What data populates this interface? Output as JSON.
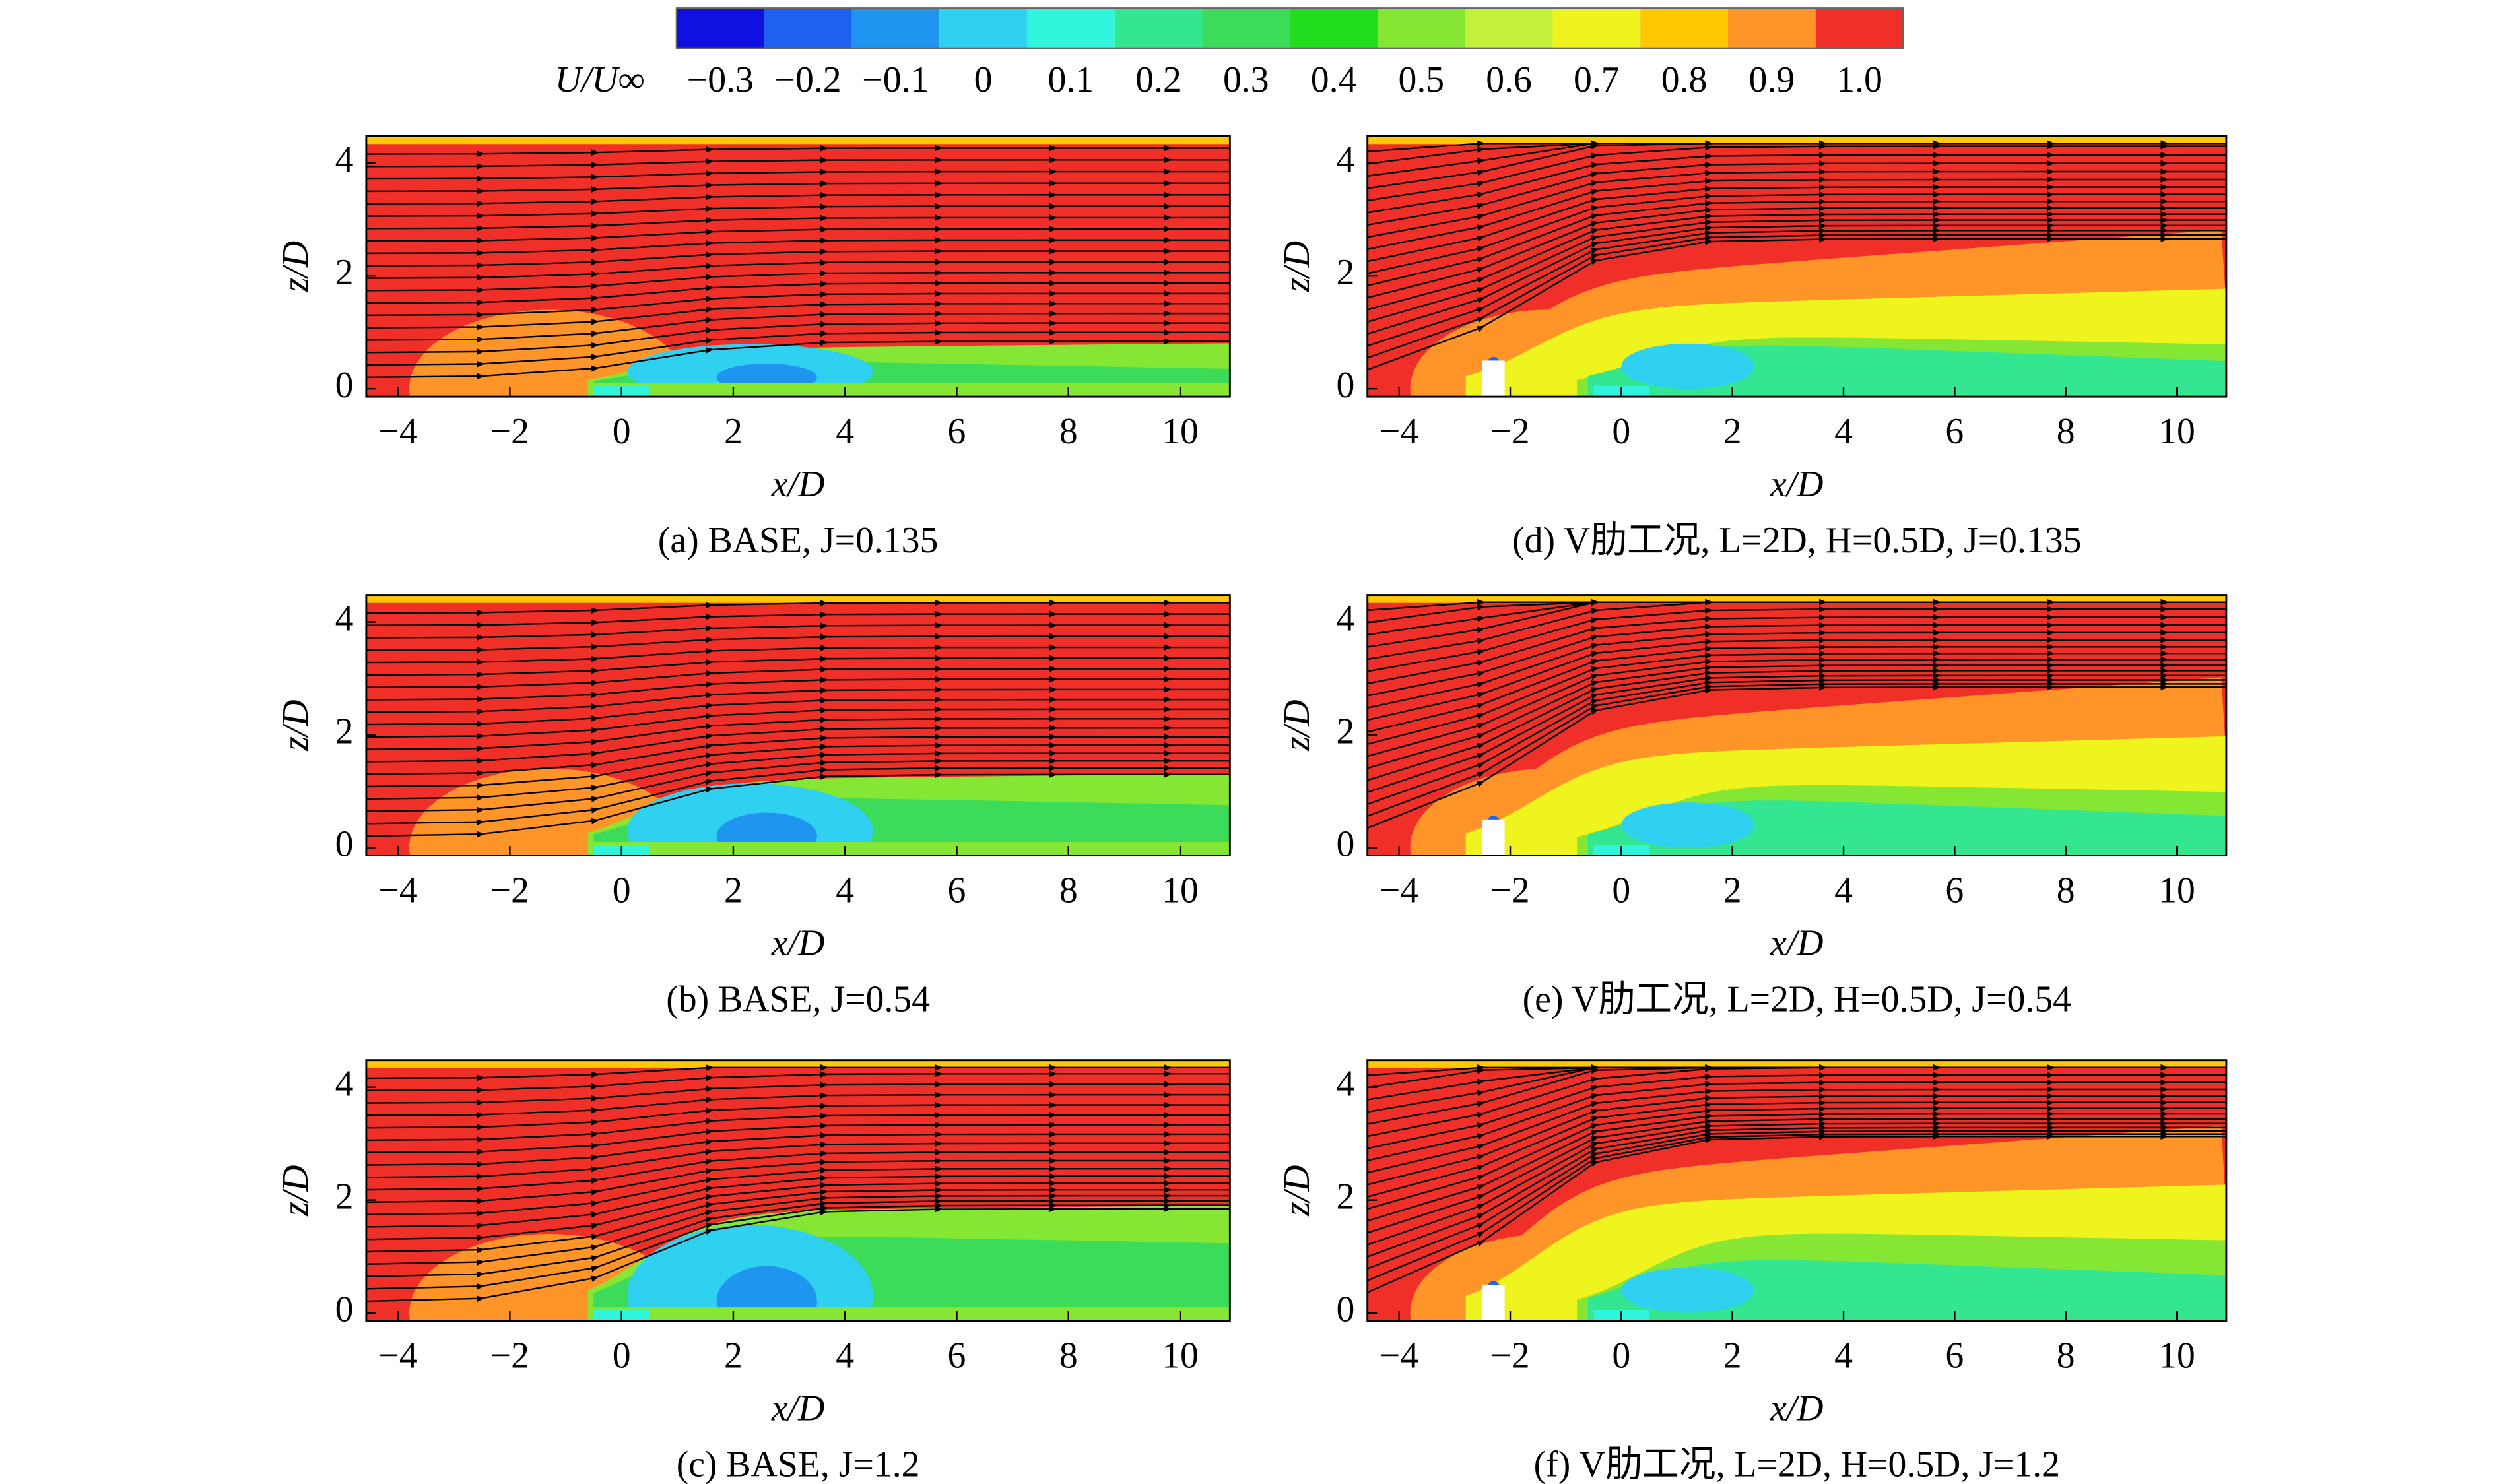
{
  "colorbar": {
    "label": "U/U∞",
    "levels": [
      {
        "value": -0.3,
        "label": "−0.3"
      },
      {
        "value": -0.2,
        "label": "−0.2"
      },
      {
        "value": -0.1,
        "label": "−0.1"
      },
      0,
      0.1,
      0.2,
      0.3,
      0.4,
      0.5,
      0.6,
      0.7,
      0.8,
      0.9,
      {
        "value": 1.0,
        "label": "1.0"
      }
    ],
    "colors": [
      "#1010e0",
      "#1e60f0",
      "#1e96f0",
      "#30d0f0",
      "#30f4dc",
      "#34e690",
      "#3cdc5a",
      "#22dc1e",
      "#86e634",
      "#c4f03c",
      "#f0f41e",
      "#ffc800",
      "#ff9428",
      "#f03028"
    ]
  },
  "chart_data": [
    {
      "type": "contour",
      "title": "(a) BASE, J=0.135",
      "xlabel": "x/D",
      "ylabel": "z/D",
      "xlim": [
        -4.57,
        10.89
      ],
      "ylim": [
        -0.14,
        4.48
      ],
      "xticks": [
        {
          "value": -4,
          "label": "−4"
        },
        {
          "value": -2,
          "label": "−2"
        },
        0,
        2,
        4,
        6,
        8,
        10
      ],
      "yticks": [
        0,
        2,
        4
      ]
    },
    {
      "type": "contour",
      "title": "(b) BASE, J=0.54",
      "xlabel": "x/D",
      "ylabel": "z/D",
      "xlim": [
        -4.57,
        10.89
      ],
      "ylim": [
        -0.14,
        4.48
      ],
      "xticks": [
        {
          "value": -4,
          "label": "−4"
        },
        {
          "value": -2,
          "label": "−2"
        },
        0,
        2,
        4,
        6,
        8,
        10
      ],
      "yticks": [
        0,
        2,
        4
      ]
    },
    {
      "type": "contour",
      "title": "(c) BASE, J=1.2",
      "xlabel": "x/D",
      "ylabel": "z/D",
      "xlim": [
        -4.57,
        10.89
      ],
      "ylim": [
        -0.14,
        4.48
      ],
      "xticks": [
        {
          "value": -4,
          "label": "−4"
        },
        {
          "value": -2,
          "label": "−2"
        },
        0,
        2,
        4,
        6,
        8,
        10
      ],
      "yticks": [
        0,
        2,
        4
      ]
    },
    {
      "type": "contour",
      "title": "(d) V肋工况, L=2D, H=0.5D, J=0.135",
      "xlabel": "x/D",
      "ylabel": "z/D",
      "xlim": [
        -4.57,
        10.89
      ],
      "ylim": [
        -0.14,
        4.48
      ],
      "xticks": [
        {
          "value": -4,
          "label": "−4"
        },
        {
          "value": -2,
          "label": "−2"
        },
        0,
        2,
        4,
        6,
        8,
        10
      ],
      "yticks": [
        0,
        2,
        4
      ]
    },
    {
      "type": "contour",
      "title": "(e) V肋工况, L=2D, H=0.5D, J=0.54",
      "xlabel": "x/D",
      "ylabel": "z/D",
      "xlim": [
        -4.57,
        10.89
      ],
      "ylim": [
        -0.14,
        4.48
      ],
      "xticks": [
        {
          "value": -4,
          "label": "−4"
        },
        {
          "value": -2,
          "label": "−2"
        },
        0,
        2,
        4,
        6,
        8,
        10
      ],
      "yticks": [
        0,
        2,
        4
      ]
    },
    {
      "type": "contour",
      "title": "(f) V肋工况, L=2D, H=0.5D, J=1.2",
      "xlabel": "x/D",
      "ylabel": "z/D",
      "xlim": [
        -4.57,
        10.89
      ],
      "ylim": [
        -0.14,
        4.48
      ],
      "xticks": [
        {
          "value": -4,
          "label": "−4"
        },
        {
          "value": -2,
          "label": "−2"
        },
        0,
        2,
        4,
        6,
        8,
        10
      ],
      "yticks": [
        0,
        2,
        4
      ]
    }
  ]
}
